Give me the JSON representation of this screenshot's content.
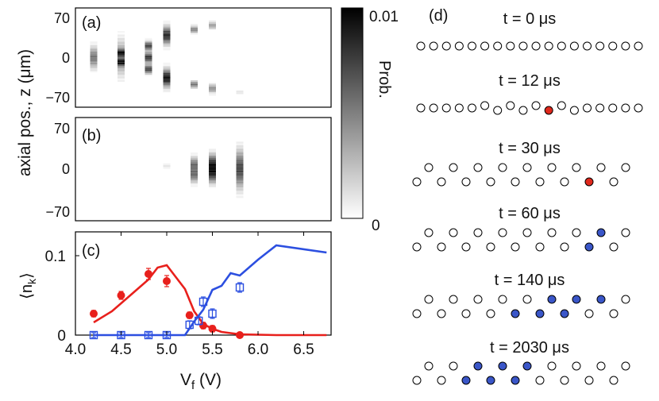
{
  "chart_data": [
    {
      "type": "heatmap",
      "panel_label": "(a)",
      "ylabel": "axial pos., z (μm)",
      "yticks": [
        "70",
        "0",
        "−70"
      ],
      "ylim": [
        -85,
        85
      ],
      "columns": [
        {
          "x": 4.2,
          "blobs": [
            [
              0,
              12,
              0.55
            ]
          ]
        },
        {
          "x": 4.5,
          "blobs": [
            [
              -8,
              4,
              0.6
            ],
            [
              8,
              4,
              0.6
            ],
            [
              0,
              20,
              0.45
            ]
          ]
        },
        {
          "x": 4.8,
          "blobs": [
            [
              -20,
              5,
              0.75
            ],
            [
              0,
              6,
              0.8
            ],
            [
              20,
              5,
              0.75
            ]
          ]
        },
        {
          "x": 5.0,
          "blobs": [
            [
              38,
              10,
              0.85
            ],
            [
              -35,
              10,
              0.95
            ]
          ]
        },
        {
          "x": 5.3,
          "blobs": [
            [
              48,
              4,
              0.5
            ],
            [
              -46,
              4,
              0.55
            ]
          ]
        },
        {
          "x": 5.5,
          "blobs": [
            [
              55,
              4,
              0.4
            ],
            [
              -53,
              5,
              0.45
            ]
          ]
        },
        {
          "x": 5.8,
          "blobs": [
            [
              -60,
              2,
              0.15
            ]
          ]
        }
      ]
    },
    {
      "type": "heatmap",
      "panel_label": "(b)",
      "yticks": [
        "70",
        "0",
        "−70"
      ],
      "ylim": [
        -85,
        85
      ],
      "columns": [
        {
          "x": 5.0,
          "blobs": [
            [
              5,
              2,
              0.15
            ]
          ]
        },
        {
          "x": 5.3,
          "blobs": [
            [
              -10,
              8,
              0.55
            ],
            [
              8,
              8,
              0.55
            ]
          ]
        },
        {
          "x": 5.5,
          "blobs": [
            [
              -8,
              10,
              0.75
            ],
            [
              10,
              10,
              0.75
            ]
          ]
        },
        {
          "x": 5.8,
          "blobs": [
            [
              0,
              20,
              0.75
            ]
          ]
        }
      ]
    },
    {
      "type": "line",
      "panel_label": "(c)",
      "ylabel": "⟨n",
      "ylabel_sub": "k",
      "ylabel_end": "⟩",
      "xlabel": "V",
      "xlabel_sub": "f",
      "xlabel_end": " (V)",
      "xlim": [
        4.0,
        6.8
      ],
      "ylim": [
        0,
        0.13
      ],
      "xticks": [
        "4.0",
        "4.5",
        "5.0",
        "5.5",
        "6.0",
        "6.5"
      ],
      "yticks": [
        "0",
        "0.1"
      ],
      "series": [
        {
          "name": "red theory",
          "color": "#e8201c",
          "x": [
            4.2,
            4.4,
            4.6,
            4.8,
            4.9,
            5.0,
            5.1,
            5.2,
            5.3,
            5.4,
            5.5,
            5.6,
            5.8,
            6.2,
            6.75
          ],
          "y": [
            0.016,
            0.03,
            0.05,
            0.07,
            0.085,
            0.088,
            0.073,
            0.058,
            0.03,
            0.014,
            0.008,
            0.004,
            0.001,
            0,
            0
          ]
        },
        {
          "name": "blue theory",
          "color": "#2c4fe0",
          "x": [
            4.2,
            5.2,
            5.3,
            5.4,
            5.5,
            5.6,
            5.7,
            5.8,
            6.0,
            6.2,
            6.75
          ],
          "y": [
            0,
            0.0,
            0.017,
            0.032,
            0.057,
            0.062,
            0.078,
            0.075,
            0.095,
            0.113,
            0.104
          ]
        },
        {
          "name": "red data",
          "color": "#e8201c",
          "marker": "filled-circle",
          "x": [
            4.2,
            4.5,
            4.8,
            5.0,
            5.25,
            5.4,
            5.5,
            5.8
          ],
          "y": [
            0.027,
            0.05,
            0.077,
            0.068,
            0.025,
            0.012,
            0.008,
            0.0
          ],
          "err": [
            0.002,
            0.003,
            0.005,
            0.005,
            0.002,
            0.002,
            0.002,
            0.001
          ]
        },
        {
          "name": "blue data",
          "color": "#2c4fe0",
          "marker": "open-square",
          "x": [
            4.2,
            4.5,
            4.8,
            5.0,
            5.25,
            5.35,
            5.4,
            5.5,
            5.8
          ],
          "y": [
            0.0,
            0.0,
            0.0,
            0.0,
            0.013,
            0.018,
            0.042,
            0.027,
            0.06
          ],
          "err": [
            0.001,
            0.001,
            0.001,
            0.001,
            0.003,
            0.003,
            0.004,
            0.004,
            0.004
          ]
        }
      ]
    }
  ],
  "colorbar": {
    "label": "Prob.",
    "max_label": "0.01",
    "min_label": "0"
  },
  "panel_d": {
    "label": "(d)",
    "rows": [
      {
        "time": "t = 0 μs",
        "top": [],
        "bottom": [],
        "linear": 18,
        "red": [],
        "blue": []
      },
      {
        "time": "t = 12 μs",
        "linear": 18,
        "zigzag_linear": true,
        "red": [
          10
        ],
        "blue": []
      },
      {
        "time": "t = 30 μs",
        "top": 9,
        "bottom": 9,
        "red_bottom": [
          7
        ],
        "blue_top": [],
        "blue_bottom": []
      },
      {
        "time": "t = 60 μs",
        "top": 9,
        "bottom": 9,
        "red_bottom": [],
        "blue_top": [
          7
        ],
        "blue_bottom": [
          7
        ]
      },
      {
        "time": "t = 140 μs",
        "top": 9,
        "bottom": 9,
        "red_bottom": [],
        "blue_top": [
          5,
          6,
          7
        ],
        "blue_bottom": [
          4,
          5,
          6
        ]
      },
      {
        "time": "t = 2030 μs",
        "top": 9,
        "bottom": 9,
        "red_bottom": [],
        "blue_top": [
          2,
          3,
          4
        ],
        "blue_bottom": [
          2,
          3,
          4
        ]
      }
    ],
    "colors": {
      "red": "#e0281c",
      "blue": "#3a56c8",
      "empty": "#ffffff"
    }
  }
}
